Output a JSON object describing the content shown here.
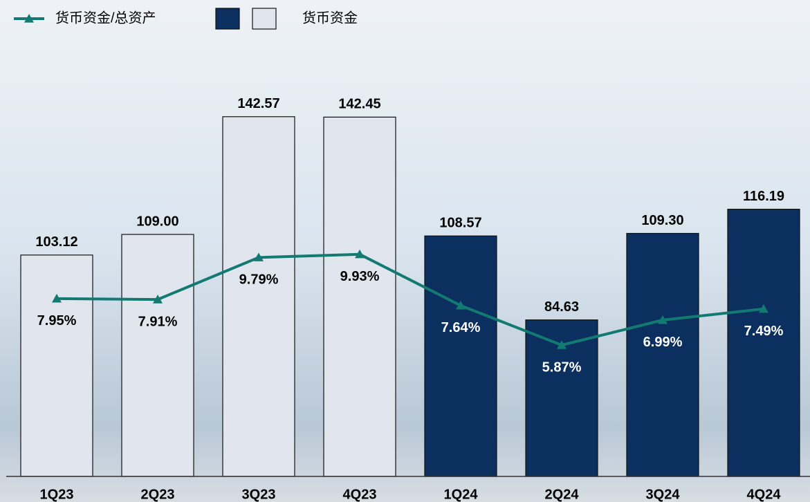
{
  "chart_data": {
    "type": "bar-line",
    "categories": [
      "1Q23",
      "2Q23",
      "3Q23",
      "4Q23",
      "1Q24",
      "2Q24",
      "3Q24",
      "4Q24"
    ],
    "series": [
      {
        "name": "货币资金",
        "type": "bar",
        "colors": [
          "#e1e5ee",
          "#e1e5ee",
          "#e1e5ee",
          "#e1e5ee",
          "#0b2f5f",
          "#0b2f5f",
          "#0b2f5f",
          "#0b2f5f"
        ],
        "values": [
          103.12,
          109.0,
          142.57,
          142.45,
          108.57,
          84.63,
          109.3,
          116.19
        ],
        "value_labels": [
          "103.12",
          "109.00",
          "142.57",
          "142.45",
          "108.57",
          "84.63",
          "109.30",
          "116.19"
        ]
      },
      {
        "name": "货币资金/总资产",
        "type": "line",
        "axis": "y2",
        "color": "#137a72",
        "values": [
          7.95,
          7.91,
          9.79,
          9.93,
          7.64,
          5.87,
          6.99,
          7.49
        ],
        "value_labels": [
          "7.95%",
          "7.91%",
          "9.79%",
          "9.93%",
          "7.64%",
          "5.87%",
          "6.99%",
          "7.49%"
        ]
      }
    ],
    "ylim": [
      40,
      165
    ],
    "y2lim": [
      0,
      19.6
    ],
    "legend": "top-left"
  }
}
